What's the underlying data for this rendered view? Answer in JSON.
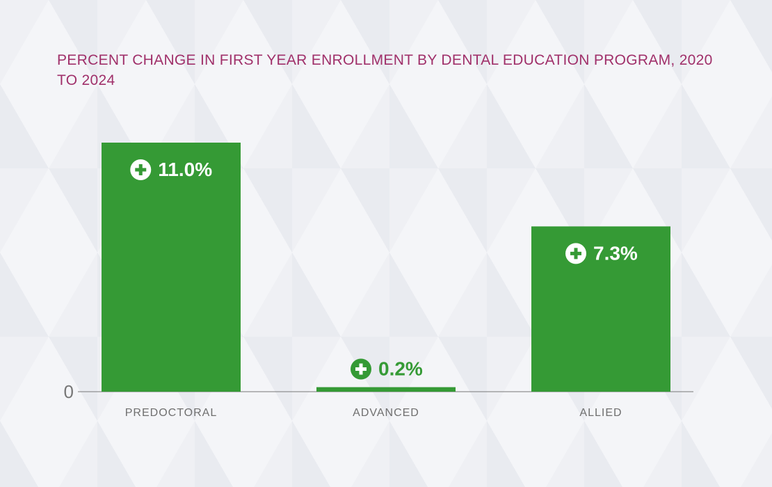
{
  "chart_data": {
    "type": "bar",
    "title": "PERCENT CHANGE IN FIRST YEAR ENROLLMENT BY DENTAL EDUCATION PROGRAM, 2020 TO 2024",
    "categories": [
      "PREDOCTORAL",
      "ADVANCED",
      "ALLIED"
    ],
    "values": [
      11.0,
      0.2,
      7.3
    ],
    "data_labels": [
      "11.0%",
      "0.2%",
      "7.3%"
    ],
    "data_label_icon": "plus-circle-icon",
    "y_tick_labels": [
      "0"
    ],
    "ylim": [
      0,
      11.0
    ],
    "grid": false,
    "legend": "none",
    "colors": {
      "bar": "#359a35",
      "title": "#a0306a",
      "axis": "#777777"
    }
  }
}
